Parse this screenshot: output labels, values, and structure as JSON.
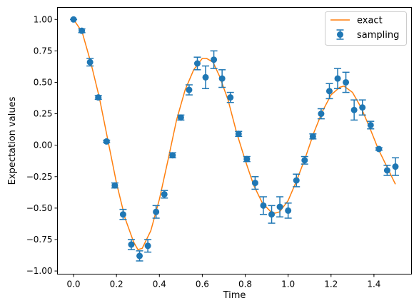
{
  "chart_data": {
    "type": "line",
    "title": "",
    "xlabel": "Time",
    "ylabel": "Expectation values",
    "xlim": [
      -0.075,
      1.575
    ],
    "ylim": [
      -1.025,
      1.095
    ],
    "x_ticks": [
      0.0,
      0.2,
      0.4,
      0.6,
      0.8,
      1.0,
      1.2,
      1.4
    ],
    "x_tick_labels": [
      "0.0",
      "0.2",
      "0.4",
      "0.6",
      "0.8",
      "1.0",
      "1.2",
      "1.4"
    ],
    "y_ticks": [
      -1.0,
      -0.75,
      -0.5,
      -0.25,
      0.0,
      0.25,
      0.5,
      0.75,
      1.0
    ],
    "y_tick_labels": [
      "−1.00",
      "−0.75",
      "−0.50",
      "−0.25",
      "0.00",
      "0.25",
      "0.50",
      "0.75",
      "1.00"
    ],
    "grid": false,
    "legend": {
      "placement": "top-right"
    },
    "series": [
      {
        "name": "exact",
        "type": "line",
        "color": "#ff7f0e",
        "x": [
          0.0,
          0.04,
          0.08,
          0.12,
          0.16,
          0.2,
          0.24,
          0.28,
          0.3,
          0.32,
          0.36,
          0.4,
          0.44,
          0.48,
          0.52,
          0.56,
          0.6,
          0.62,
          0.65,
          0.68,
          0.72,
          0.76,
          0.8,
          0.84,
          0.88,
          0.92,
          0.94,
          0.96,
          1.0,
          1.04,
          1.08,
          1.12,
          1.16,
          1.2,
          1.24,
          1.26,
          1.3,
          1.34,
          1.38,
          1.42,
          1.46,
          1.5
        ],
        "y": [
          1.0,
          0.9,
          0.66,
          0.38,
          0.04,
          -0.3,
          -0.58,
          -0.77,
          -0.83,
          -0.82,
          -0.68,
          -0.43,
          -0.12,
          0.2,
          0.44,
          0.6,
          0.69,
          0.69,
          0.66,
          0.55,
          0.36,
          0.1,
          -0.12,
          -0.32,
          -0.46,
          -0.53,
          -0.54,
          -0.53,
          -0.44,
          -0.28,
          -0.1,
          0.1,
          0.27,
          0.4,
          0.46,
          0.47,
          0.42,
          0.3,
          0.14,
          -0.03,
          -0.17,
          -0.31
        ]
      },
      {
        "name": "sampling",
        "type": "errorbar",
        "color": "#1f77b4",
        "x": [
          0.0,
          0.0385,
          0.0769,
          0.1154,
          0.1538,
          0.1923,
          0.2308,
          0.2692,
          0.3077,
          0.3462,
          0.3846,
          0.4231,
          0.4615,
          0.5,
          0.5385,
          0.5769,
          0.6154,
          0.6538,
          0.6923,
          0.7308,
          0.7692,
          0.8077,
          0.8462,
          0.8846,
          0.9231,
          0.9615,
          1.0,
          1.0385,
          1.0769,
          1.1154,
          1.1538,
          1.1923,
          1.2308,
          1.2692,
          1.3077,
          1.3462,
          1.3846,
          1.4231,
          1.4615,
          1.5
        ],
        "y": [
          1.0,
          0.91,
          0.66,
          0.38,
          0.03,
          -0.32,
          -0.55,
          -0.79,
          -0.88,
          -0.8,
          -0.53,
          -0.39,
          -0.08,
          0.22,
          0.44,
          0.65,
          0.54,
          0.68,
          0.53,
          0.38,
          0.09,
          -0.11,
          -0.3,
          -0.48,
          -0.55,
          -0.49,
          -0.52,
          -0.28,
          -0.12,
          0.07,
          0.25,
          0.43,
          0.53,
          0.5,
          0.28,
          0.3,
          0.16,
          -0.03,
          -0.2,
          -0.17
        ],
        "yerr": [
          0.0,
          0.015,
          0.03,
          0.015,
          0.01,
          0.02,
          0.04,
          0.04,
          0.04,
          0.05,
          0.05,
          0.03,
          0.02,
          0.02,
          0.04,
          0.05,
          0.09,
          0.07,
          0.07,
          0.04,
          0.02,
          0.02,
          0.05,
          0.07,
          0.07,
          0.08,
          0.06,
          0.05,
          0.03,
          0.02,
          0.04,
          0.06,
          0.08,
          0.08,
          0.08,
          0.06,
          0.03,
          0.01,
          0.04,
          0.07
        ]
      }
    ]
  }
}
